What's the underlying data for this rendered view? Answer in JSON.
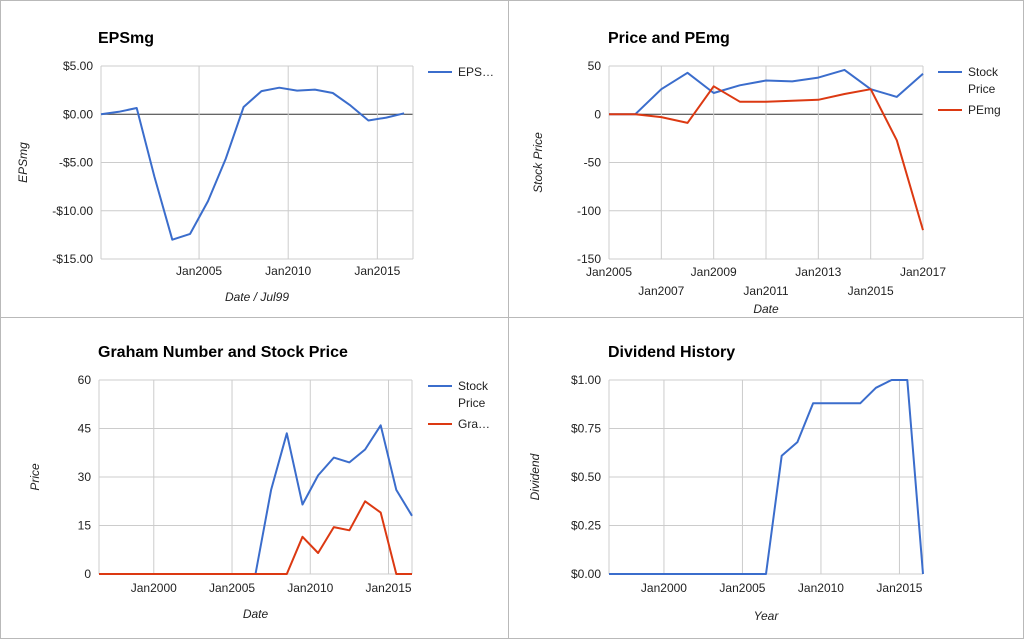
{
  "colors": {
    "blue": "#3b6dcc",
    "red": "#dc3912",
    "grid": "#cccccc",
    "zero": "#333333"
  },
  "chart_data": [
    {
      "id": "eps",
      "type": "line",
      "title": "EPSmg",
      "xlabel": "Date / Jul99",
      "ylabel": "EPSmg",
      "xlim": [
        1999.5,
        2017.0
      ],
      "ylim": [
        -15,
        5
      ],
      "yticks": [
        5,
        0,
        -5,
        -10,
        -15
      ],
      "ytick_labels": [
        "$5.00",
        "$0.00",
        "-$5.00",
        "-$10.00",
        "-$15.00"
      ],
      "xticks": [
        {
          "x": 2005,
          "label": "Jan2005"
        },
        {
          "x": 2010,
          "label": "Jan2010"
        },
        {
          "x": 2015,
          "label": "Jan2015"
        }
      ],
      "grid": true,
      "legend_position": "right",
      "series": [
        {
          "name": "EPS…",
          "color": "#3b6dcc",
          "x": [
            1999.5,
            2000.5,
            2001.5,
            2002.5,
            2003.5,
            2004.5,
            2005.5,
            2006.5,
            2007.5,
            2008.5,
            2009.5,
            2010.5,
            2011.5,
            2012.5,
            2013.5,
            2014.5,
            2015.5,
            2016.5
          ],
          "y": [
            0.0,
            0.25,
            0.65,
            -6.5,
            -13.0,
            -12.4,
            -9.0,
            -4.6,
            0.75,
            2.4,
            2.75,
            2.45,
            2.55,
            2.2,
            0.9,
            -0.65,
            -0.35,
            0.1
          ]
        }
      ]
    },
    {
      "id": "pe",
      "type": "line",
      "title": "Price and PEmg",
      "xlabel": "Date",
      "ylabel": "Stock Price",
      "xlim": [
        2005.0,
        2017.0
      ],
      "ylim": [
        -150,
        50
      ],
      "yticks": [
        50,
        0,
        -50,
        -100,
        -150
      ],
      "ytick_labels": [
        "50",
        "0",
        "-50",
        "-100",
        "-150"
      ],
      "xticks": [
        {
          "x": 2005,
          "label": "Jan2005",
          "row": 0
        },
        {
          "x": 2007,
          "label": "Jan2007",
          "row": 1
        },
        {
          "x": 2009,
          "label": "Jan2009",
          "row": 0
        },
        {
          "x": 2011,
          "label": "Jan2011",
          "row": 1
        },
        {
          "x": 2013,
          "label": "Jan2013",
          "row": 0
        },
        {
          "x": 2015,
          "label": "Jan2015",
          "row": 1
        },
        {
          "x": 2017,
          "label": "Jan2017",
          "row": 0
        }
      ],
      "grid": true,
      "legend_position": "right",
      "series": [
        {
          "name": "Stock Price",
          "color": "#3b6dcc",
          "x": [
            2005.0,
            2006.0,
            2007.0,
            2008.0,
            2009.0,
            2010.0,
            2011.0,
            2012.0,
            2013.0,
            2014.0,
            2015.0,
            2016.0,
            2017.0
          ],
          "y": [
            0,
            0,
            26,
            43,
            22,
            30,
            35,
            34,
            38,
            46,
            26,
            18,
            42
          ]
        },
        {
          "name": "PEmg",
          "color": "#dc3912",
          "x": [
            2005.0,
            2006.0,
            2007.0,
            2008.0,
            2009.0,
            2010.0,
            2011.0,
            2012.0,
            2013.0,
            2014.0,
            2015.0,
            2016.0,
            2017.0
          ],
          "y": [
            0,
            0,
            -3,
            -9,
            29,
            13,
            13,
            14,
            15,
            21,
            26,
            -27,
            -120
          ]
        }
      ]
    },
    {
      "id": "graham",
      "type": "line",
      "title": "Graham Number and Stock Price",
      "xlabel": "Date",
      "ylabel": "Price",
      "xlim": [
        1996.5,
        2016.5
      ],
      "ylim": [
        0,
        60
      ],
      "yticks": [
        60,
        45,
        30,
        15,
        0
      ],
      "ytick_labels": [
        "60",
        "45",
        "30",
        "15",
        "0"
      ],
      "xticks": [
        {
          "x": 2000,
          "label": "Jan2000"
        },
        {
          "x": 2005,
          "label": "Jan2005"
        },
        {
          "x": 2010,
          "label": "Jan2010"
        },
        {
          "x": 2015,
          "label": "Jan2015"
        }
      ],
      "grid": true,
      "legend_position": "right",
      "series": [
        {
          "name": "Stock Price",
          "color": "#3b6dcc",
          "x": [
            1996.5,
            2005.5,
            2006.5,
            2007.5,
            2008.5,
            2009.5,
            2010.5,
            2011.5,
            2012.5,
            2013.5,
            2014.5,
            2015.5,
            2016.5
          ],
          "y": [
            0,
            0,
            0,
            26,
            43.5,
            21.5,
            30.5,
            36,
            34.5,
            38.5,
            46,
            26,
            18
          ]
        },
        {
          "name": "Gra…",
          "color": "#dc3912",
          "x": [
            1996.5,
            2007.5,
            2008.5,
            2009.5,
            2010.5,
            2011.5,
            2012.5,
            2013.5,
            2014.5,
            2015.5,
            2016.5
          ],
          "y": [
            0,
            0,
            0,
            11.5,
            6.5,
            14.5,
            13.5,
            22.5,
            19,
            0,
            0
          ]
        }
      ]
    },
    {
      "id": "dividend",
      "type": "line",
      "title": "Dividend History",
      "xlabel": "Year",
      "ylabel": "Dividend",
      "xlim": [
        1996.5,
        2016.5
      ],
      "ylim": [
        0,
        1.0
      ],
      "yticks": [
        1.0,
        0.75,
        0.5,
        0.25,
        0
      ],
      "ytick_labels": [
        "$1.00",
        "$0.75",
        "$0.50",
        "$0.25",
        "$0.00"
      ],
      "xticks": [
        {
          "x": 2000,
          "label": "Jan2000"
        },
        {
          "x": 2005,
          "label": "Jan2005"
        },
        {
          "x": 2010,
          "label": "Jan2010"
        },
        {
          "x": 2015,
          "label": "Jan2015"
        }
      ],
      "grid": true,
      "legend_position": "none",
      "series": [
        {
          "name": "",
          "color": "#3b6dcc",
          "x": [
            1996.5,
            2005.5,
            2006.5,
            2007.5,
            2008.5,
            2009.5,
            2010.5,
            2011.5,
            2012.5,
            2013.5,
            2014.5,
            2015.5,
            2016.5
          ],
          "y": [
            0,
            0,
            0,
            0.61,
            0.68,
            0.88,
            0.88,
            0.88,
            0.88,
            0.96,
            1.0,
            1.0,
            0
          ]
        }
      ]
    }
  ]
}
